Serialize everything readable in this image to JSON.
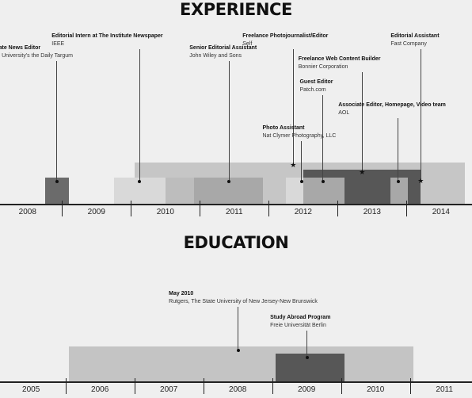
{
  "experience": {
    "title": "EXPERIENCE",
    "axis": {
      "min": 2007.6,
      "max": 2014.45,
      "ticks": [
        2008,
        2009,
        2010,
        2011,
        2012,
        2013,
        2014
      ]
    },
    "bars": [
      {
        "start": 2009.55,
        "end": 2014.35,
        "color": "#c6c6c6",
        "layer": 0,
        "band": "tall"
      },
      {
        "start": 2008.25,
        "end": 2008.6,
        "color": "#6b6b6b",
        "layer": 1,
        "band": "short"
      },
      {
        "start": 2009.25,
        "end": 2010.0,
        "color": "#d9d9d9",
        "layer": 1,
        "band": "short"
      },
      {
        "start": 2010.0,
        "end": 2010.42,
        "color": "#bdbdbd",
        "layer": 1,
        "band": "short"
      },
      {
        "start": 2010.42,
        "end": 2011.42,
        "color": "#a8a8a8",
        "layer": 2,
        "band": "short"
      },
      {
        "start": 2011.75,
        "end": 2012.0,
        "color": "#d9d9d9",
        "layer": 2,
        "band": "short"
      },
      {
        "start": 2012.0,
        "end": 2013.7,
        "color": "#575757",
        "layer": 3,
        "band": "medium"
      },
      {
        "start": 2012.0,
        "end": 2012.6,
        "color": "#a8a8a8",
        "layer": 4,
        "band": "short"
      },
      {
        "start": 2013.27,
        "end": 2013.52,
        "color": "#a8a8a8",
        "layer": 4,
        "band": "short"
      }
    ],
    "items": [
      {
        "title": "Associate News Editor",
        "org": "Rutgers University's the Daily Targum",
        "x": 2008.42,
        "marker": "dot",
        "markerBand": "short",
        "labelRow": 2,
        "labelX": 2007.32
      },
      {
        "title": "Editorial Intern at The Institute Newspaper",
        "org": "IEEE",
        "x": 2009.62,
        "marker": "dot",
        "markerBand": "short",
        "labelRow": 0,
        "labelX": 2008.35
      },
      {
        "title": "Senior Editorial Assistant",
        "org": "John Wiley and Sons",
        "x": 2010.92,
        "marker": "dot",
        "markerBand": "short",
        "labelRow": 2,
        "labelX": 2010.35
      },
      {
        "title": "Freelance Photojournalist/Editor",
        "org": "Self",
        "x": 2011.85,
        "marker": "star",
        "markerBand": "tall",
        "labelRow": 0,
        "labelX": 2011.12
      },
      {
        "title": "Photo Assistant",
        "org": "Nat Clymer Photography, LLC",
        "x": 2011.97,
        "marker": "dot",
        "markerBand": "short",
        "labelRow": 6,
        "labelX": 2011.41
      },
      {
        "title": "Guest Editor",
        "org": "Patch.com",
        "x": 2012.28,
        "marker": "dot",
        "markerBand": "short",
        "labelRow": 3,
        "labelX": 2011.95
      },
      {
        "title": "Freelance Web Content Builder",
        "org": "Bonnier Corporation",
        "x": 2012.85,
        "marker": "star",
        "markerBand": "medium",
        "labelRow": 1,
        "labelX": 2011.93
      },
      {
        "title": "Associate Editor, Homepage, Video team",
        "org": "AOL",
        "x": 2013.37,
        "marker": "dot",
        "markerBand": "short",
        "labelRow": 4,
        "labelX": 2012.51
      },
      {
        "title": "Editorial Assistant",
        "org": "Fast Company",
        "x": 2013.7,
        "marker": "star",
        "markerBand": "short",
        "labelRow": 0,
        "labelX": 2013.27
      }
    ]
  },
  "education": {
    "title": "EDUCATION",
    "axis": {
      "min": 2004.55,
      "max": 2011.4,
      "ticks": [
        2005,
        2006,
        2007,
        2008,
        2009,
        2010,
        2011
      ]
    },
    "bars": [
      {
        "start": 2005.55,
        "end": 2010.55,
        "color": "#c4c4c4",
        "layer": 0,
        "band": "tall"
      },
      {
        "start": 2008.55,
        "end": 2009.55,
        "color": "#575757",
        "layer": 1,
        "band": "short"
      }
    ],
    "items": [
      {
        "title": "May 2010",
        "org": "Rutgers, The State University of New Jersey-New Brunswick",
        "x": 2008.0,
        "marker": "dot",
        "markerBand": "tall",
        "labelRow": 0,
        "labelX": 2007.0
      },
      {
        "title": "Study Abroad Program",
        "org": "Freie Universität Berlin",
        "x": 2009.0,
        "marker": "dot",
        "markerBand": "short",
        "labelRow": 1,
        "labelX": 2008.47
      }
    ]
  }
}
